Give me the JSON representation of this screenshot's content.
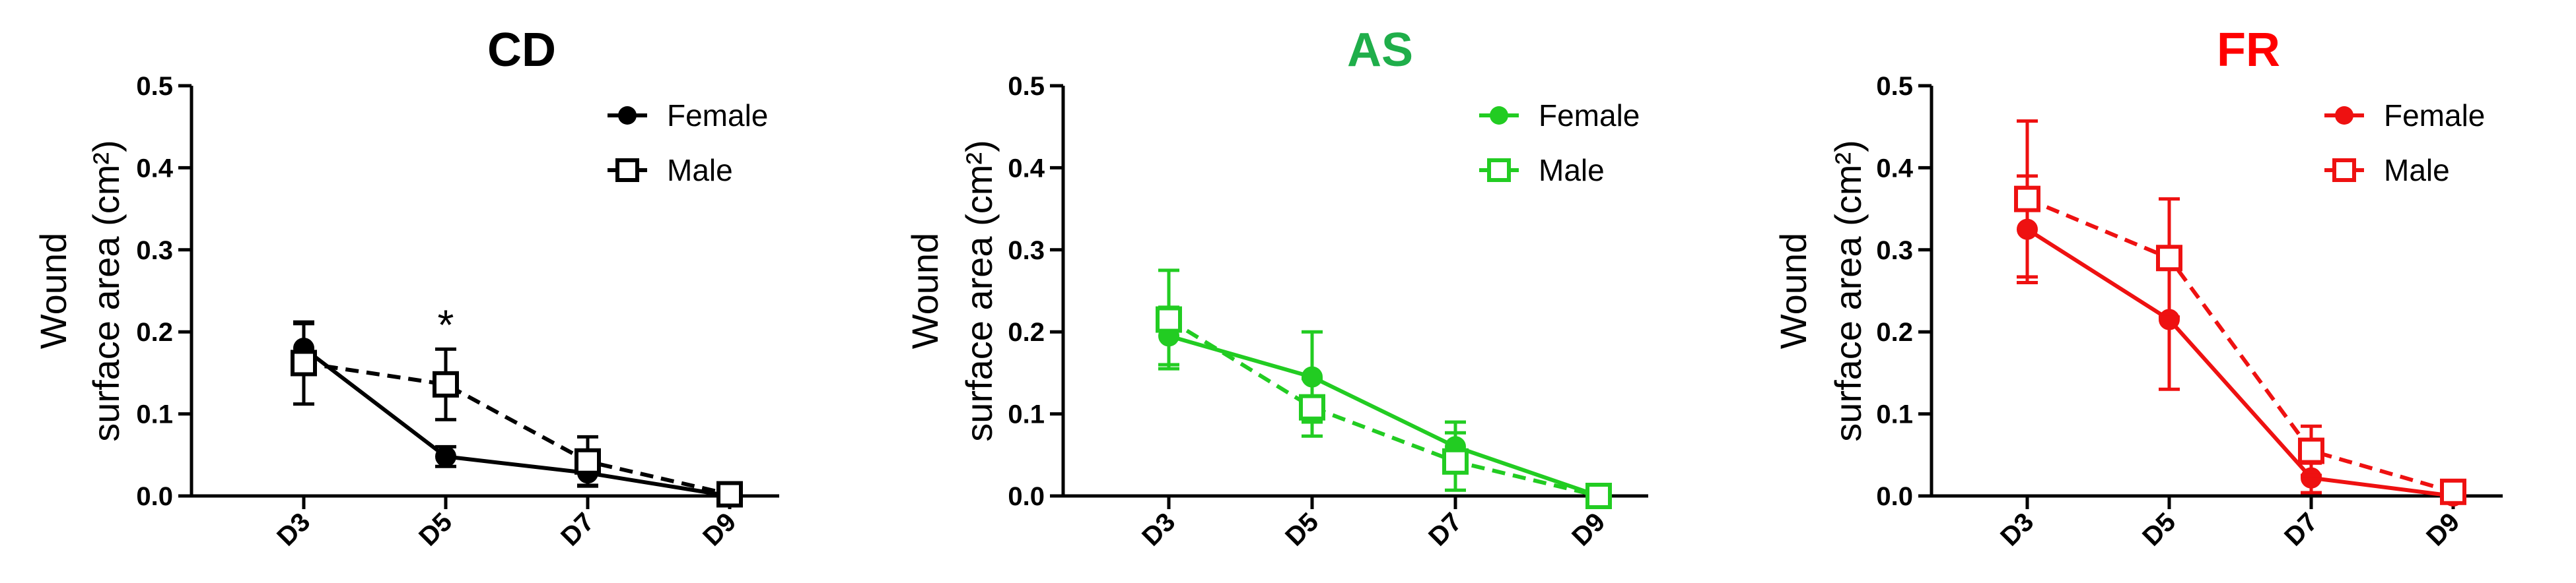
{
  "chart_data": [
    {
      "type": "line",
      "title": "CD",
      "title_color": "#000000",
      "color": "#000000",
      "ylabel_line1": "Wound",
      "ylabel_line2": "surface area (cm²)",
      "categories": [
        "D3",
        "D5",
        "D7",
        "D9"
      ],
      "ylim": [
        0,
        0.5
      ],
      "yticks": [
        "0.0",
        "0.1",
        "0.2",
        "0.3",
        "0.4",
        "0.5"
      ],
      "legend_position": "top-right",
      "series": [
        {
          "name": "Female",
          "marker": "filled-circle",
          "line": "solid",
          "values": [
            0.18,
            0.048,
            0.028,
            0.0
          ],
          "errors": [
            0.03,
            0.012,
            0.015,
            0.0
          ]
        },
        {
          "name": "Male",
          "marker": "open-square",
          "line": "dashed",
          "values": [
            0.162,
            0.136,
            0.042,
            0.002
          ],
          "errors": [
            0.05,
            0.043,
            0.03,
            0.0
          ]
        }
      ],
      "annotations": [
        {
          "text": "*",
          "category": "D5"
        }
      ]
    },
    {
      "type": "line",
      "title": "AS",
      "title_color": "#1fae4a",
      "color": "#22cc22",
      "ylabel_line1": "Wound",
      "ylabel_line2": "surface area (cm²)",
      "categories": [
        "D3",
        "D5",
        "D7",
        "D9"
      ],
      "ylim": [
        0,
        0.5
      ],
      "yticks": [
        "0.0",
        "0.1",
        "0.2",
        "0.3",
        "0.4",
        "0.5"
      ],
      "legend_position": "top-right",
      "series": [
        {
          "name": "Female",
          "marker": "filled-circle",
          "line": "solid",
          "values": [
            0.195,
            0.145,
            0.06,
            0.0
          ],
          "errors": [
            0.035,
            0.055,
            0.03,
            0.0
          ]
        },
        {
          "name": "Male",
          "marker": "open-square",
          "line": "dashed",
          "values": [
            0.215,
            0.108,
            0.042,
            0.0
          ],
          "errors": [
            0.06,
            0.035,
            0.035,
            0.0
          ]
        }
      ],
      "annotations": []
    },
    {
      "type": "line",
      "title": "FR",
      "title_color": "#ff0000",
      "color": "#ee1111",
      "ylabel_line1": "Wound",
      "ylabel_line2": "surface area (cm²)",
      "categories": [
        "D3",
        "D5",
        "D7",
        "D9"
      ],
      "ylim": [
        0,
        0.5
      ],
      "yticks": [
        "0.0",
        "0.1",
        "0.2",
        "0.3",
        "0.4",
        "0.5"
      ],
      "legend_position": "top-right",
      "series": [
        {
          "name": "Female",
          "marker": "filled-circle",
          "line": "solid",
          "values": [
            0.325,
            0.215,
            0.022,
            0.0
          ],
          "errors": [
            0.065,
            0.085,
            0.018,
            0.0
          ]
        },
        {
          "name": "Male",
          "marker": "open-square",
          "line": "dashed",
          "values": [
            0.362,
            0.29,
            0.055,
            0.005
          ],
          "errors": [
            0.095,
            0.072,
            0.03,
            0.0
          ]
        }
      ],
      "annotations": []
    }
  ]
}
